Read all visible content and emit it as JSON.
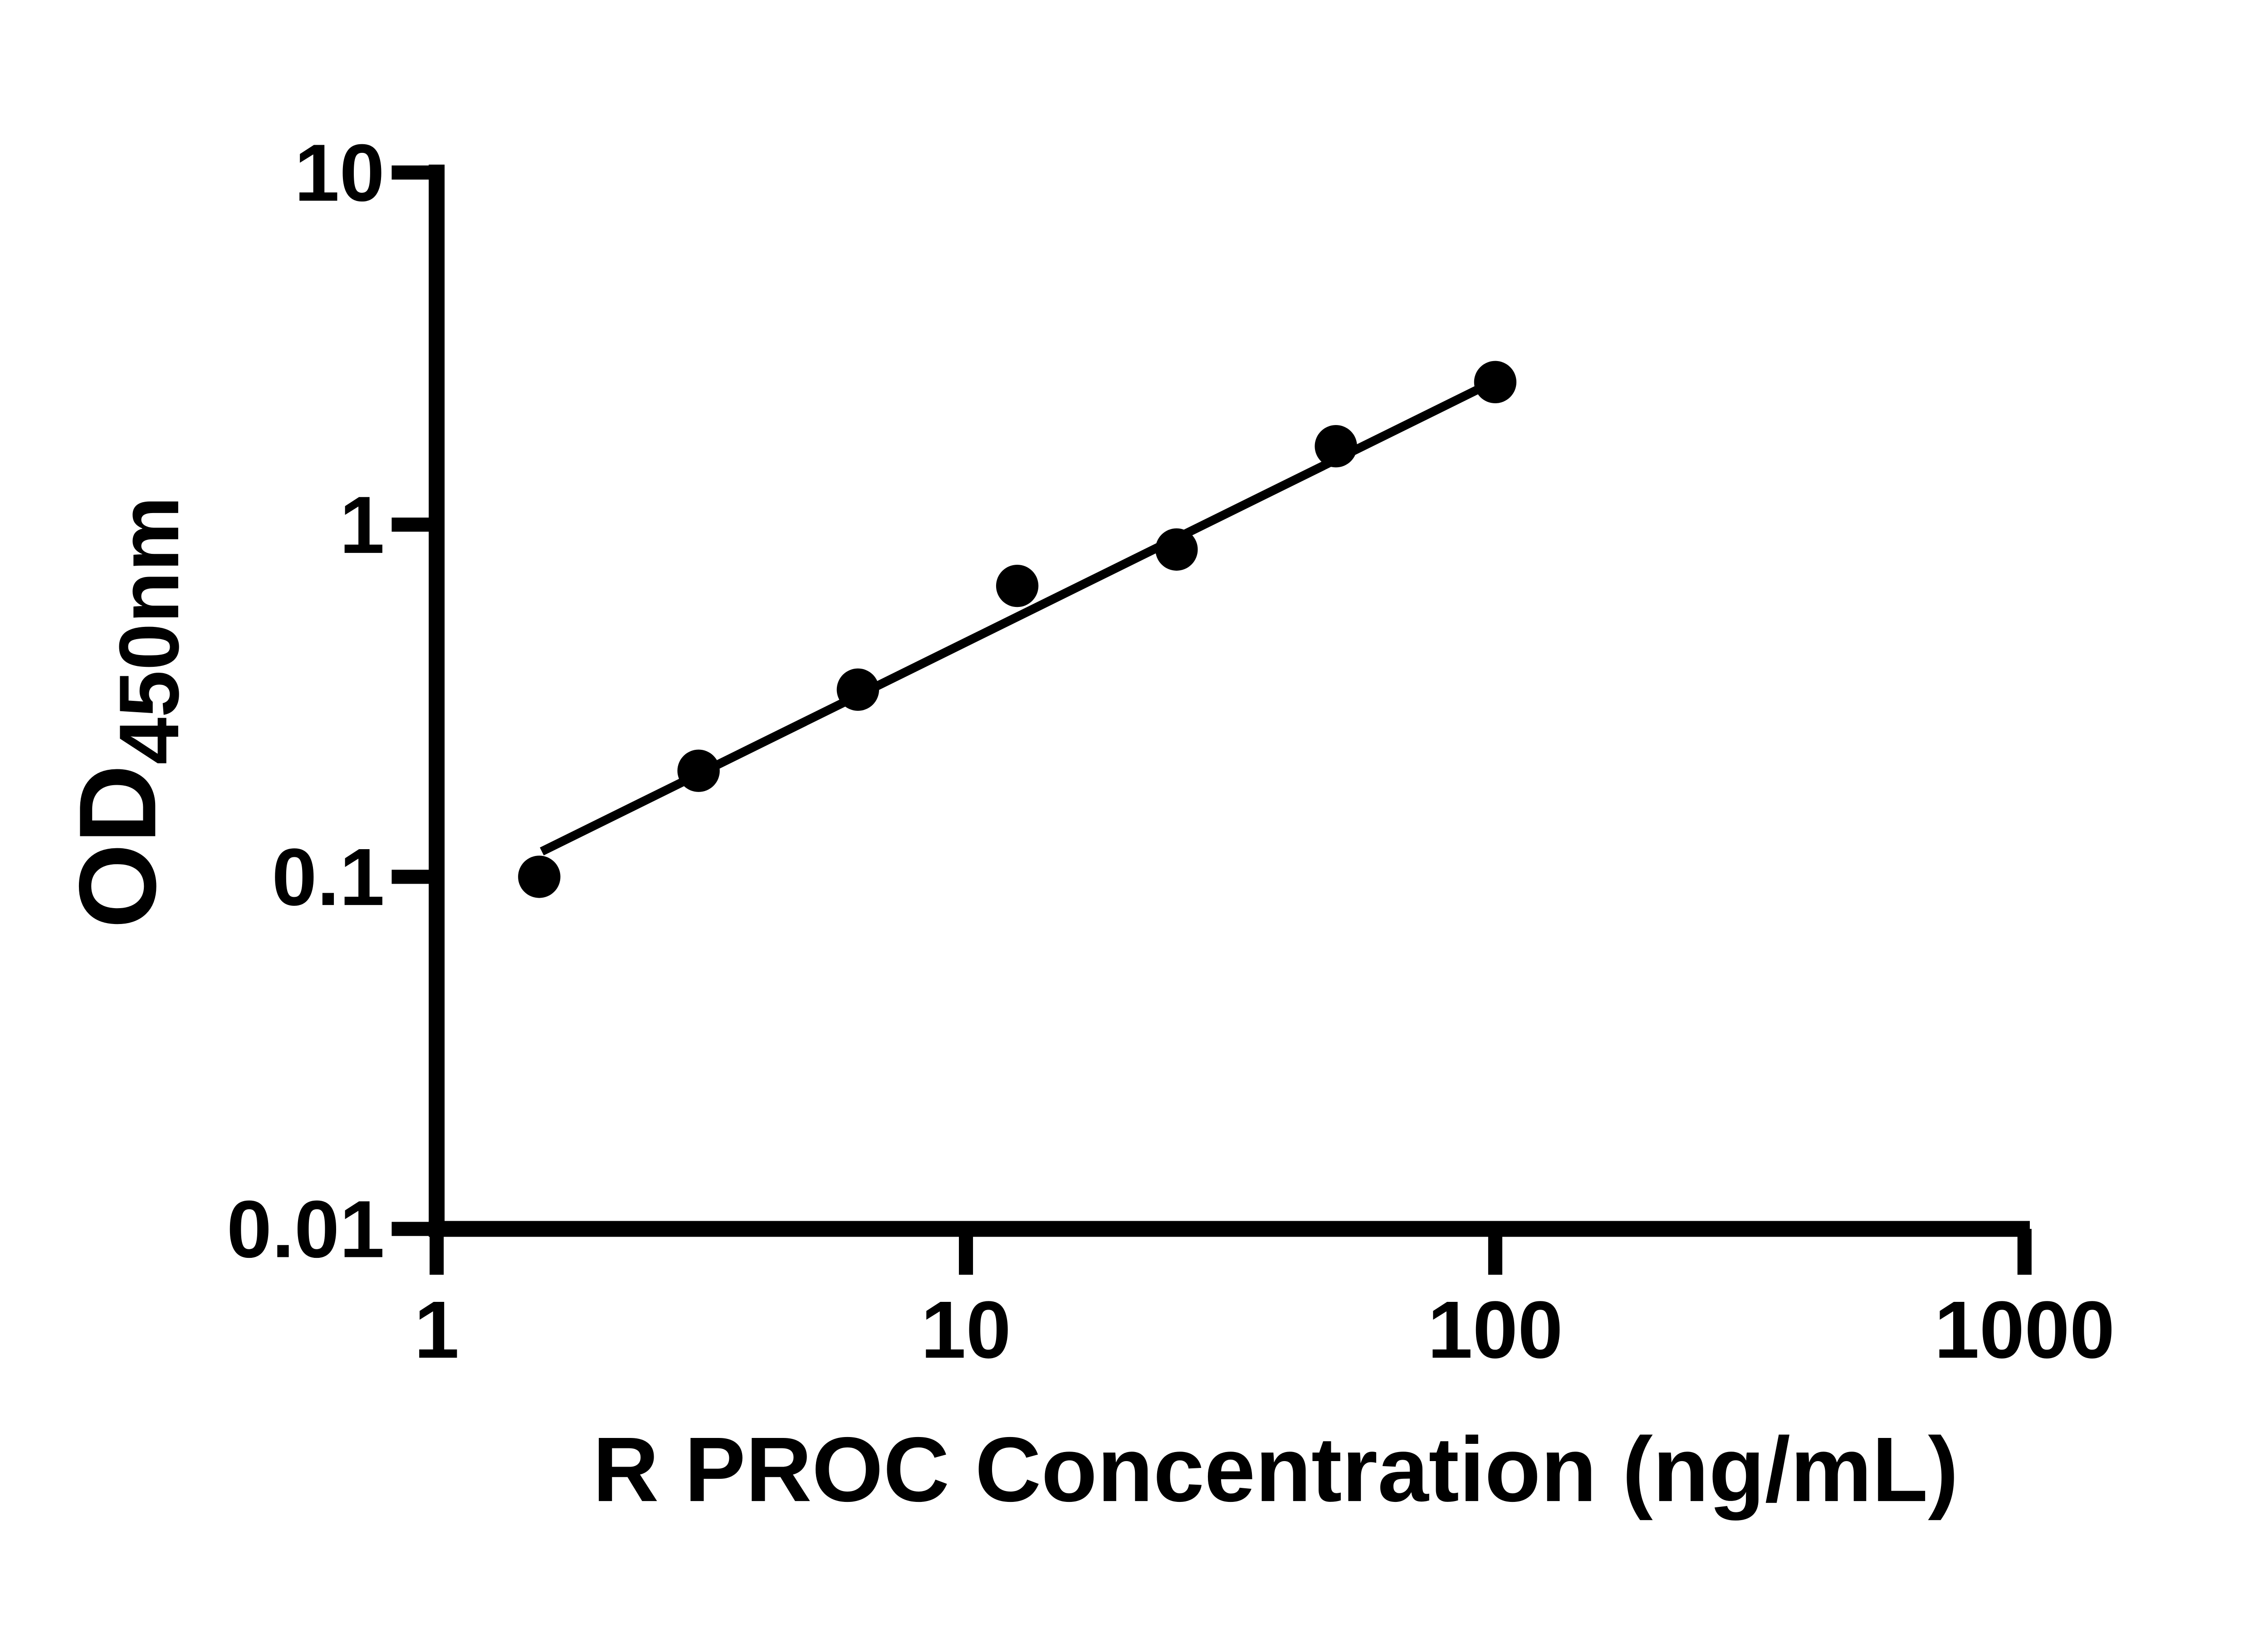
{
  "figure": {
    "background": "#ffffff",
    "ink": "#000000"
  },
  "y_axis": {
    "title_main": "OD",
    "title_sub": "450nm",
    "tick_labels": [
      "10",
      "1",
      "0.1",
      "0.01"
    ]
  },
  "x_axis": {
    "title": "R PROC Concentration (ng/mL)",
    "tick_labels": [
      "1",
      "10",
      "100",
      "1000"
    ]
  },
  "chart_data": {
    "type": "scatter",
    "xlabel": "R PROC Concentration (ng/mL)",
    "ylabel": "OD450nm",
    "xscale": "log",
    "yscale": "log",
    "xlim": [
      1,
      1000
    ],
    "ylim": [
      0.01,
      10
    ],
    "x_ticks": [
      1,
      10,
      100,
      1000
    ],
    "y_ticks": [
      10,
      1,
      0.1,
      0.01
    ],
    "grid": false,
    "legend": false,
    "series": [
      {
        "marker": "filled-circle",
        "color": "#000000",
        "x": [
          1.5625,
          3.125,
          6.25,
          12.5,
          25,
          50,
          100
        ],
        "y": [
          0.1,
          0.2,
          0.34,
          0.67,
          0.85,
          1.67,
          2.54
        ]
      }
    ],
    "trend_line": {
      "color": "#000000",
      "x_start": 1.58,
      "y_start": 0.118,
      "x_end": 100,
      "y_end": 2.56
    }
  }
}
